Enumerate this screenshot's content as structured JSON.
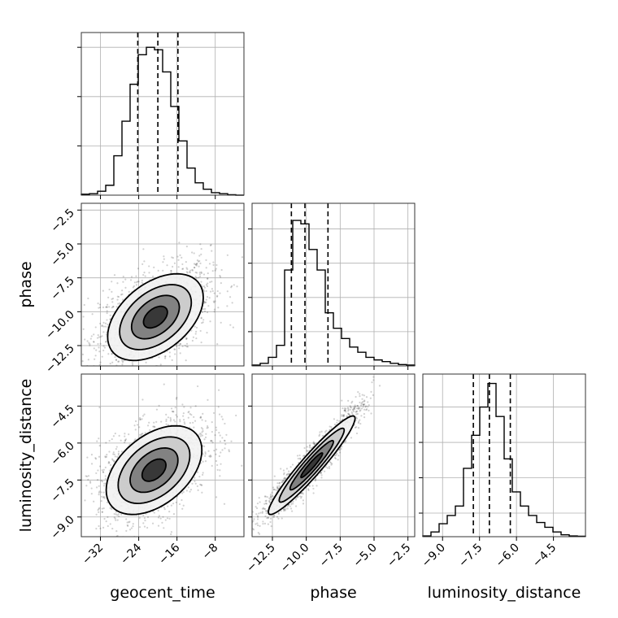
{
  "chart_data": {
    "type": "corner",
    "parameters": [
      "geocent_time",
      "phase",
      "luminosity_distance"
    ],
    "axes": {
      "geocent_time": {
        "label": "geocent_time",
        "range": [
          -36,
          -2
        ],
        "ticks": [
          -32,
          -24,
          -16,
          -8
        ],
        "tick_labels": [
          "−32",
          "−24",
          "−16",
          "−8"
        ],
        "quantiles": [
          -24.2,
          -20.0,
          -15.8
        ]
      },
      "phase": {
        "label": "phase",
        "range": [
          -14,
          -2
        ],
        "ticks": [
          -12.5,
          -10.0,
          -7.5,
          -5.0,
          -2.5
        ],
        "tick_labels": [
          "−12.5",
          "−10.0",
          "−7.5",
          "−5.0",
          "−2.5"
        ],
        "quantiles": [
          -11.1,
          -10.1,
          -8.4
        ]
      },
      "luminosity_distance": {
        "label": "luminosity_distance",
        "range": [
          -9.8,
          -3.2
        ],
        "ticks": [
          -9.0,
          -7.5,
          -6.0,
          -4.5
        ],
        "tick_labels": [
          "−9.0",
          "−7.5",
          "−6.0",
          "−4.5"
        ],
        "quantiles": [
          -7.75,
          -7.1,
          -6.25
        ]
      }
    },
    "histograms": {
      "geocent_time": {
        "bin_edges": [
          -36.0,
          -34.3,
          -32.6,
          -30.9,
          -29.2,
          -27.5,
          -25.8,
          -24.1,
          -22.4,
          -20.7,
          -19.0,
          -17.3,
          -15.6,
          -13.9,
          -12.2,
          -10.5,
          -8.8,
          -7.1,
          -5.4,
          -3.7,
          -2.0
        ],
        "counts": [
          2,
          3,
          8,
          20,
          80,
          150,
          225,
          285,
          300,
          295,
          250,
          180,
          110,
          55,
          25,
          12,
          5,
          3,
          1,
          0
        ],
        "ymax": 330,
        "yticks": [
          100,
          200,
          300
        ]
      },
      "phase": {
        "bin_edges": [
          -14.0,
          -13.4,
          -12.8,
          -12.2,
          -11.6,
          -11.0,
          -10.4,
          -9.8,
          -9.2,
          -8.6,
          -8.0,
          -7.4,
          -6.8,
          -6.2,
          -5.6,
          -5.0,
          -4.4,
          -3.8,
          -3.2,
          -2.6,
          -2.0
        ],
        "counts": [
          5,
          15,
          50,
          120,
          560,
          850,
          830,
          680,
          560,
          310,
          220,
          160,
          110,
          80,
          50,
          35,
          25,
          15,
          8,
          5
        ],
        "ymax": 950,
        "yticks": [
          200,
          400,
          600,
          800
        ]
      },
      "luminosity_distance": {
        "bin_edges": [
          -9.8,
          -9.47,
          -9.14,
          -8.81,
          -8.48,
          -8.15,
          -7.82,
          -7.49,
          -7.16,
          -6.83,
          -6.5,
          -6.17,
          -5.84,
          -5.51,
          -5.18,
          -4.85,
          -4.52,
          -4.19,
          -3.86,
          -3.53,
          -3.2
        ],
        "counts": [
          3,
          20,
          55,
          90,
          130,
          290,
          430,
          550,
          650,
          510,
          330,
          190,
          130,
          90,
          60,
          40,
          20,
          8,
          3,
          2
        ],
        "ymax": 690,
        "yticks": [
          100,
          250,
          400,
          550
        ]
      }
    },
    "pairs": [
      {
        "x": "geocent_time",
        "y": "phase",
        "center": [
          -20.5,
          -10.4
        ],
        "sigma": [
          5.0,
          1.6
        ],
        "correlation": 0.45,
        "contour_levels_sigma": [
          0.5,
          1.0,
          1.5,
          2.0
        ],
        "n_points": 1800
      },
      {
        "x": "geocent_time",
        "y": "luminosity_distance",
        "center": [
          -20.8,
          -7.1
        ],
        "sigma": [
          5.0,
          0.9
        ],
        "correlation": 0.45,
        "contour_levels_sigma": [
          0.5,
          1.0,
          1.5,
          2.0
        ],
        "n_points": 1800
      },
      {
        "x": "phase",
        "y": "luminosity_distance",
        "center": [
          -9.6,
          -6.9
        ],
        "sigma": [
          1.6,
          1.0
        ],
        "correlation": 0.95,
        "contour_levels_sigma": [
          0.5,
          1.0,
          1.5,
          2.0
        ],
        "n_points": 1800
      }
    ]
  }
}
